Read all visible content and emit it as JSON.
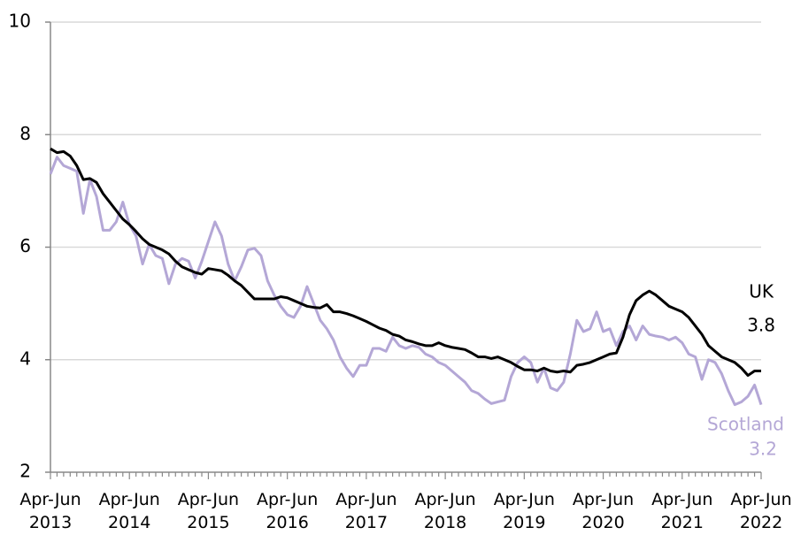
{
  "chart_data": {
    "type": "line",
    "categories": [
      "Apr-Jun 2013",
      null,
      null,
      null,
      null,
      null,
      null,
      null,
      null,
      null,
      null,
      null,
      "Apr-Jun 2014",
      null,
      null,
      null,
      null,
      null,
      null,
      null,
      null,
      null,
      null,
      null,
      "Apr-Jun 2015",
      null,
      null,
      null,
      null,
      null,
      null,
      null,
      null,
      null,
      null,
      null,
      "Apr-Jun 2016",
      null,
      null,
      null,
      null,
      null,
      null,
      null,
      null,
      null,
      null,
      null,
      "Apr-Jun 2017",
      null,
      null,
      null,
      null,
      null,
      null,
      null,
      null,
      null,
      null,
      null,
      "Apr-Jun 2018",
      null,
      null,
      null,
      null,
      null,
      null,
      null,
      null,
      null,
      null,
      null,
      "Apr-Jun 2019",
      null,
      null,
      null,
      null,
      null,
      null,
      null,
      null,
      null,
      null,
      null,
      "Apr-Jun 2020",
      null,
      null,
      null,
      null,
      null,
      null,
      null,
      null,
      null,
      null,
      null,
      "Apr-Jun 2021",
      null,
      null,
      null,
      null,
      null,
      null,
      null,
      null,
      null,
      null,
      null,
      "Apr-Jun 2022"
    ],
    "series": [
      {
        "name": "UK",
        "color": "#000000",
        "end_label": "3.8",
        "values": [
          7.75,
          7.68,
          7.7,
          7.62,
          7.45,
          7.2,
          7.22,
          7.15,
          6.95,
          6.8,
          6.65,
          6.5,
          6.4,
          6.28,
          6.15,
          6.05,
          6.0,
          5.95,
          5.88,
          5.75,
          5.65,
          5.6,
          5.55,
          5.52,
          5.62,
          5.6,
          5.58,
          5.5,
          5.4,
          5.32,
          5.2,
          5.08,
          5.08,
          5.08,
          5.08,
          5.12,
          5.1,
          5.05,
          5.0,
          4.95,
          4.93,
          4.92,
          4.98,
          4.85,
          4.85,
          4.82,
          4.78,
          4.73,
          4.68,
          4.62,
          4.56,
          4.52,
          4.45,
          4.42,
          4.35,
          4.32,
          4.28,
          4.25,
          4.25,
          4.3,
          4.25,
          4.22,
          4.2,
          4.18,
          4.12,
          4.05,
          4.05,
          4.02,
          4.05,
          4.0,
          3.95,
          3.88,
          3.82,
          3.82,
          3.8,
          3.85,
          3.8,
          3.78,
          3.8,
          3.78,
          3.9,
          3.92,
          3.95,
          4.0,
          4.05,
          4.1,
          4.12,
          4.4,
          4.8,
          5.05,
          5.15,
          5.22,
          5.15,
          5.05,
          4.95,
          4.9,
          4.85,
          4.75,
          4.6,
          4.45,
          4.25,
          4.15,
          4.05,
          4.0,
          3.95,
          3.85,
          3.72,
          3.8,
          3.8
        ]
      },
      {
        "name": "Scotland",
        "color": "#b4a7d6",
        "end_label": "3.2",
        "values": [
          7.3,
          7.6,
          7.45,
          7.4,
          7.35,
          6.6,
          7.2,
          6.9,
          6.3,
          6.3,
          6.45,
          6.8,
          6.4,
          6.2,
          5.7,
          6.05,
          5.85,
          5.8,
          5.35,
          5.7,
          5.8,
          5.75,
          5.45,
          5.75,
          6.1,
          6.45,
          6.2,
          5.7,
          5.4,
          5.65,
          5.95,
          5.98,
          5.85,
          5.4,
          5.15,
          4.95,
          4.8,
          4.75,
          4.95,
          5.3,
          5.0,
          4.7,
          4.55,
          4.35,
          4.05,
          3.85,
          3.7,
          3.9,
          3.9,
          4.2,
          4.2,
          4.15,
          4.4,
          4.25,
          4.2,
          4.25,
          4.22,
          4.1,
          4.05,
          3.95,
          3.9,
          3.8,
          3.7,
          3.6,
          3.45,
          3.4,
          3.3,
          3.22,
          3.25,
          3.28,
          3.7,
          3.95,
          4.05,
          3.95,
          3.6,
          3.85,
          3.5,
          3.45,
          3.6,
          4.1,
          4.7,
          4.5,
          4.55,
          4.85,
          4.5,
          4.55,
          4.25,
          4.5,
          4.6,
          4.35,
          4.6,
          4.45,
          4.42,
          4.4,
          4.35,
          4.4,
          4.3,
          4.1,
          4.05,
          3.65,
          4.0,
          3.95,
          3.75,
          3.45,
          3.2,
          3.25,
          3.35,
          3.55,
          3.2
        ]
      }
    ],
    "ylim": [
      2,
      10
    ],
    "yticks": [
      2,
      4,
      6,
      8,
      10
    ],
    "grid": true
  }
}
